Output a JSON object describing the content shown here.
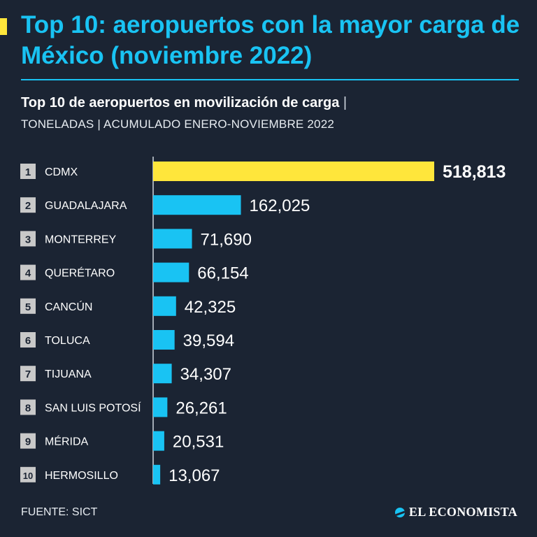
{
  "header": {
    "title": "Top 10: aeropuertos con la mayor carga de México (noviembre 2022)",
    "subtitle": "Top 10 de aeropuertos en movilización de carga",
    "subtitle_sep": "|",
    "subtitle2": "TONELADAS | ACUMULADO ENERO-NOVIEMBRE 2022"
  },
  "colors": {
    "background": "#1b2433",
    "title": "#19c3f3",
    "bar_default": "#19c3f3",
    "bar_highlight": "#ffe63b",
    "rank_badge": "#c9c9c9"
  },
  "chart_data": {
    "type": "bar",
    "orientation": "horizontal",
    "categories": [
      "CDMX",
      "GUADALAJARA",
      "MONTERREY",
      "QUERÉTARO",
      "CANCÚN",
      "TOLUCA",
      "TIJUANA",
      "SAN LUIS POTOSÍ",
      "MÉRIDA",
      "HERMOSILLO"
    ],
    "ranks": [
      "1",
      "2",
      "3",
      "4",
      "5",
      "6",
      "7",
      "8",
      "9",
      "10"
    ],
    "values": [
      518813,
      162025,
      71690,
      66154,
      42325,
      39594,
      34307,
      26261,
      20531,
      13067
    ],
    "value_labels": [
      "518,813",
      "162,025",
      "71,690",
      "66,154",
      "42,325",
      "39,594",
      "34,307",
      "26,261",
      "20,531",
      "13,067"
    ],
    "highlight_index": 0,
    "xlim": [
      0,
      518813
    ],
    "grid": false,
    "legend": "none"
  },
  "footer": {
    "source": "FUENTE: SICT",
    "brand": "EL ECONOMISTA"
  }
}
